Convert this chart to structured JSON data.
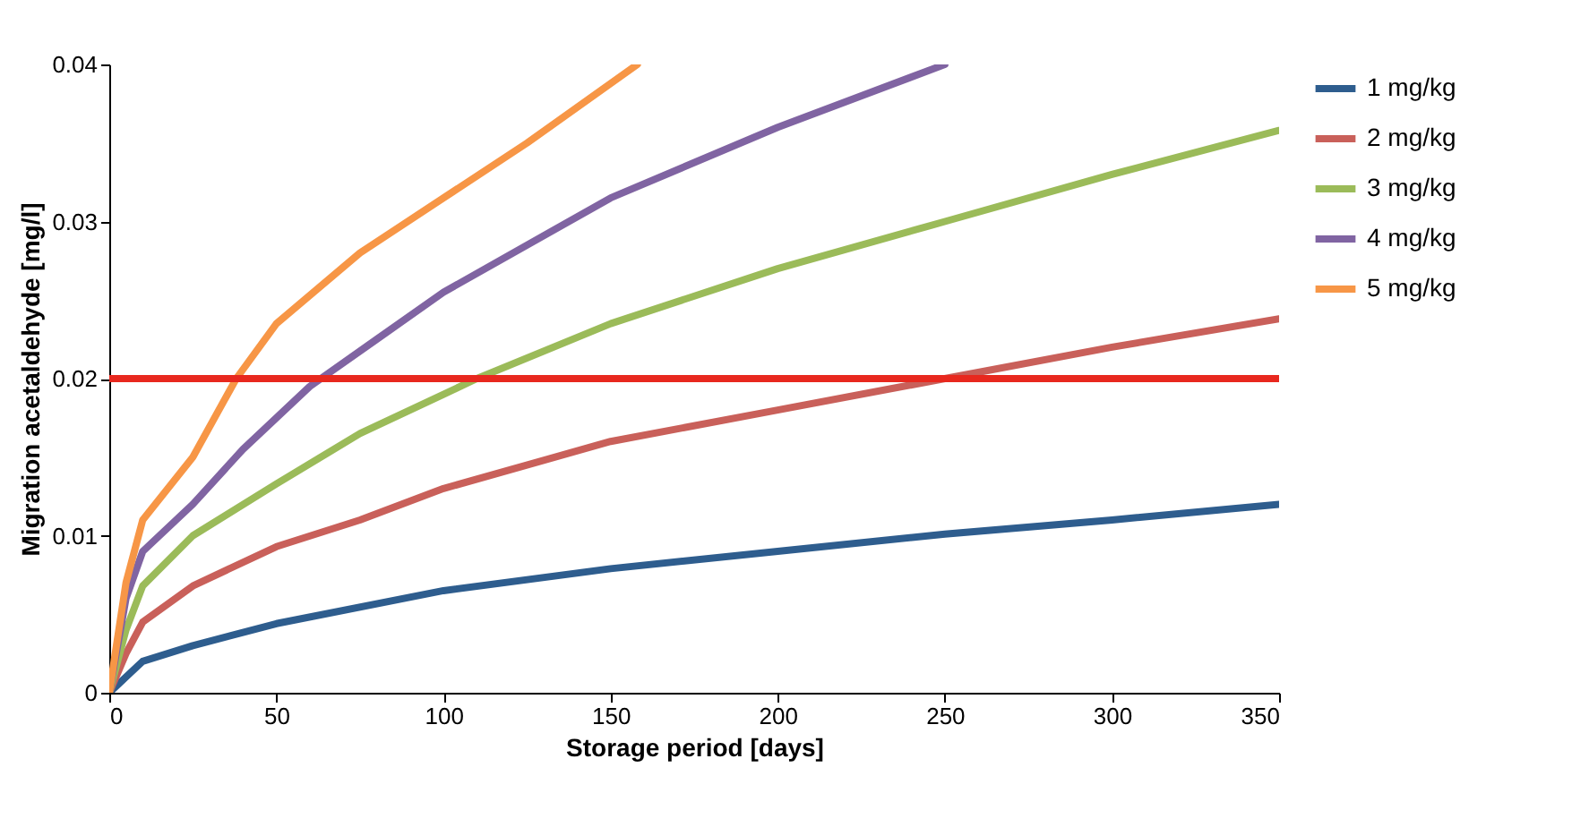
{
  "chart_data": {
    "type": "line",
    "xlabel": "Storage period [days]",
    "ylabel": "Migration acetaldehyde [mg/l]",
    "xlim": [
      0,
      350
    ],
    "xticks": [
      0,
      50,
      100,
      150,
      200,
      250,
      300,
      350
    ],
    "ylim": [
      0,
      0.04
    ],
    "yticks": [
      0,
      0.01,
      0.02,
      0.03,
      0.04
    ],
    "grid": false,
    "legend": "right",
    "marker": "none",
    "series": [
      {
        "name": "1 mg/kg",
        "color": "#2e5d8e",
        "x": [
          0,
          5,
          10,
          25,
          50,
          100,
          150,
          200,
          250,
          300,
          350
        ],
        "values": [
          0,
          0.001,
          0.002,
          0.003,
          0.0044,
          0.0065,
          0.0079,
          0.009,
          0.0101,
          0.011,
          0.012
        ]
      },
      {
        "name": "2 mg/kg",
        "color": "#c9605a",
        "x": [
          0,
          5,
          10,
          25,
          50,
          75,
          100,
          150,
          200,
          250,
          300,
          350
        ],
        "values": [
          0,
          0.0025,
          0.0045,
          0.0068,
          0.0093,
          0.011,
          0.013,
          0.016,
          0.018,
          0.02,
          0.022,
          0.0238
        ]
      },
      {
        "name": "3 mg/kg",
        "color": "#9bbb59",
        "x": [
          0,
          5,
          10,
          25,
          50,
          75,
          100,
          110,
          150,
          200,
          250,
          300,
          350
        ],
        "values": [
          0,
          0.004,
          0.0068,
          0.01,
          0.0133,
          0.0165,
          0.019,
          0.02,
          0.0235,
          0.027,
          0.03,
          0.033,
          0.0358
        ]
      },
      {
        "name": "4 mg/kg",
        "color": "#8064a2",
        "x": [
          0,
          5,
          10,
          25,
          40,
          60,
          80,
          100,
          150,
          200,
          250
        ],
        "values": [
          0,
          0.006,
          0.009,
          0.012,
          0.0155,
          0.0195,
          0.0225,
          0.0255,
          0.0315,
          0.036,
          0.04
        ]
      },
      {
        "name": "5 mg/kg",
        "color": "#f79646",
        "x": [
          0,
          5,
          10,
          25,
          38,
          50,
          75,
          100,
          125,
          158
        ],
        "values": [
          0,
          0.007,
          0.011,
          0.015,
          0.02,
          0.0235,
          0.028,
          0.0315,
          0.035,
          0.04
        ]
      }
    ],
    "ref_lines": [
      {
        "axis": "y",
        "value": 0.02,
        "color": "#e8281e"
      }
    ]
  }
}
